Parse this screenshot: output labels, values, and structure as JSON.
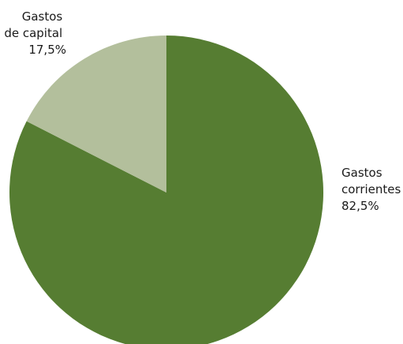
{
  "chart_data": {
    "type": "pie",
    "title": "",
    "legend": "none",
    "start": "12 o'clock",
    "direction": "clockwise",
    "colors": {
      "slice_current": "#567d32",
      "slice_capital": "#b3bf9c",
      "background": "#ffffff",
      "text": "#1a1a1a"
    },
    "slices": [
      {
        "key": "current",
        "label_lines": [
          "Gastos",
          "corrientes"
        ],
        "value": 82.5,
        "value_label": "82,5%",
        "color": "#567d32"
      },
      {
        "key": "capital",
        "label_lines": [
          "Gastos",
          "de capital"
        ],
        "value": 17.5,
        "value_label": "17,5%",
        "color": "#b3bf9c"
      }
    ]
  }
}
